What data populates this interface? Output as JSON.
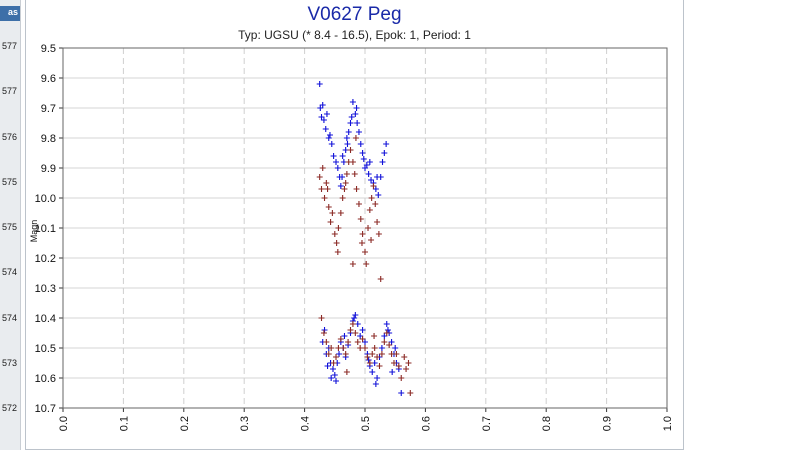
{
  "left_panel": {
    "header": "as",
    "values": [
      "577",
      "577",
      "576",
      "575",
      "575",
      "574",
      "574",
      "573",
      "572"
    ]
  },
  "chart_data": {
    "type": "scatter",
    "title": "V0627 Peg",
    "subtitle": "Typ: UGSU (* 8.4 - 16.5), Epok: 1, Period: 1",
    "xlabel": "",
    "ylabel": "Magn",
    "xlim": [
      0,
      1.0
    ],
    "ylim": [
      9.5,
      10.7
    ],
    "y_inverted": true,
    "grid": true,
    "xticks": [
      "0.0",
      "0.1",
      "0.2",
      "0.3",
      "0.4",
      "0.5",
      "0.6",
      "0.7",
      "0.8",
      "0.9",
      "1.0"
    ],
    "yticks": [
      "9.5",
      "9.6",
      "9.7",
      "9.8",
      "9.9",
      "10.0",
      "10.1",
      "10.2",
      "10.3",
      "10.4",
      "10.5",
      "10.6",
      "10.7"
    ],
    "series": [
      {
        "color": "#1010d8",
        "marker": "+",
        "points": [
          [
            0.425,
            9.62
          ],
          [
            0.426,
            9.7
          ],
          [
            0.428,
            9.73
          ],
          [
            0.43,
            9.69
          ],
          [
            0.432,
            9.74
          ],
          [
            0.435,
            9.77
          ],
          [
            0.44,
            9.8
          ],
          [
            0.445,
            9.82
          ],
          [
            0.448,
            9.86
          ],
          [
            0.452,
            9.88
          ],
          [
            0.455,
            9.9
          ],
          [
            0.458,
            9.93
          ],
          [
            0.46,
            9.96
          ],
          [
            0.462,
            9.93
          ],
          [
            0.465,
            9.88
          ],
          [
            0.468,
            9.84
          ],
          [
            0.47,
            9.8
          ],
          [
            0.473,
            9.78
          ],
          [
            0.476,
            9.75
          ],
          [
            0.478,
            9.73
          ],
          [
            0.48,
            9.68
          ],
          [
            0.484,
            9.72
          ],
          [
            0.487,
            9.75
          ],
          [
            0.49,
            9.78
          ],
          [
            0.493,
            9.82
          ],
          [
            0.496,
            9.85
          ],
          [
            0.498,
            9.87
          ],
          [
            0.5,
            9.9
          ],
          [
            0.503,
            9.89
          ],
          [
            0.506,
            9.92
          ],
          [
            0.51,
            9.94
          ],
          [
            0.514,
            9.95
          ],
          [
            0.518,
            9.97
          ],
          [
            0.522,
            9.99
          ],
          [
            0.526,
            9.93
          ],
          [
            0.529,
            9.88
          ],
          [
            0.532,
            9.85
          ],
          [
            0.535,
            9.82
          ],
          [
            0.442,
            9.79
          ],
          [
            0.437,
            9.72
          ],
          [
            0.463,
            9.86
          ],
          [
            0.471,
            9.82
          ],
          [
            0.486,
            9.7
          ],
          [
            0.508,
            9.88
          ],
          [
            0.52,
            9.93
          ],
          [
            0.43,
            10.48
          ],
          [
            0.433,
            10.44
          ],
          [
            0.436,
            10.52
          ],
          [
            0.44,
            10.5
          ],
          [
            0.443,
            10.55
          ],
          [
            0.447,
            10.57
          ],
          [
            0.45,
            10.59
          ],
          [
            0.454,
            10.55
          ],
          [
            0.457,
            10.52
          ],
          [
            0.46,
            10.48
          ],
          [
            0.464,
            10.5
          ],
          [
            0.468,
            10.53
          ],
          [
            0.472,
            10.49
          ],
          [
            0.476,
            10.45
          ],
          [
            0.48,
            10.41
          ],
          [
            0.484,
            10.39
          ],
          [
            0.488,
            10.42
          ],
          [
            0.492,
            10.46
          ],
          [
            0.496,
            10.44
          ],
          [
            0.5,
            10.48
          ],
          [
            0.504,
            10.52
          ],
          [
            0.508,
            10.56
          ],
          [
            0.512,
            10.58
          ],
          [
            0.516,
            10.55
          ],
          [
            0.52,
            10.6
          ],
          [
            0.524,
            10.53
          ],
          [
            0.528,
            10.5
          ],
          [
            0.532,
            10.46
          ],
          [
            0.536,
            10.42
          ],
          [
            0.54,
            10.45
          ],
          [
            0.544,
            10.48
          ],
          [
            0.548,
            10.52
          ],
          [
            0.552,
            10.55
          ],
          [
            0.556,
            10.57
          ],
          [
            0.56,
            10.65
          ],
          [
            0.438,
            10.56
          ],
          [
            0.444,
            10.6
          ],
          [
            0.452,
            10.61
          ],
          [
            0.466,
            10.46
          ],
          [
            0.482,
            10.4
          ],
          [
            0.506,
            10.54
          ],
          [
            0.518,
            10.62
          ],
          [
            0.538,
            10.44
          ],
          [
            0.55,
            10.5
          ],
          [
            0.545,
            10.58
          ]
        ]
      },
      {
        "color": "#8b2a25",
        "marker": "+",
        "points": [
          [
            0.425,
            9.93
          ],
          [
            0.428,
            9.97
          ],
          [
            0.43,
            9.9
          ],
          [
            0.433,
            10.0
          ],
          [
            0.436,
            9.95
          ],
          [
            0.44,
            10.03
          ],
          [
            0.443,
            10.08
          ],
          [
            0.446,
            10.05
          ],
          [
            0.45,
            10.12
          ],
          [
            0.453,
            10.15
          ],
          [
            0.456,
            10.1
          ],
          [
            0.46,
            10.05
          ],
          [
            0.463,
            10.0
          ],
          [
            0.466,
            9.97
          ],
          [
            0.47,
            9.92
          ],
          [
            0.473,
            9.88
          ],
          [
            0.476,
            9.84
          ],
          [
            0.48,
            9.88
          ],
          [
            0.483,
            9.92
          ],
          [
            0.486,
            9.97
          ],
          [
            0.49,
            10.02
          ],
          [
            0.493,
            10.07
          ],
          [
            0.496,
            10.12
          ],
          [
            0.5,
            10.18
          ],
          [
            0.502,
            10.22
          ],
          [
            0.505,
            10.1
          ],
          [
            0.508,
            10.04
          ],
          [
            0.511,
            10.0
          ],
          [
            0.514,
            9.96
          ],
          [
            0.517,
            10.02
          ],
          [
            0.52,
            10.08
          ],
          [
            0.523,
            10.12
          ],
          [
            0.526,
            10.27
          ],
          [
            0.48,
            10.22
          ],
          [
            0.495,
            10.15
          ],
          [
            0.455,
            10.18
          ],
          [
            0.468,
            9.95
          ],
          [
            0.438,
            9.97
          ],
          [
            0.51,
            10.14
          ],
          [
            0.485,
            9.8
          ],
          [
            0.428,
            10.4
          ],
          [
            0.432,
            10.45
          ],
          [
            0.436,
            10.48
          ],
          [
            0.44,
            10.52
          ],
          [
            0.444,
            10.5
          ],
          [
            0.448,
            10.55
          ],
          [
            0.452,
            10.53
          ],
          [
            0.456,
            10.5
          ],
          [
            0.46,
            10.47
          ],
          [
            0.464,
            10.5
          ],
          [
            0.468,
            10.52
          ],
          [
            0.472,
            10.48
          ],
          [
            0.476,
            10.44
          ],
          [
            0.48,
            10.42
          ],
          [
            0.484,
            10.45
          ],
          [
            0.488,
            10.48
          ],
          [
            0.492,
            10.5
          ],
          [
            0.496,
            10.47
          ],
          [
            0.5,
            10.5
          ],
          [
            0.504,
            10.53
          ],
          [
            0.508,
            10.55
          ],
          [
            0.512,
            10.52
          ],
          [
            0.516,
            10.5
          ],
          [
            0.52,
            10.53
          ],
          [
            0.524,
            10.56
          ],
          [
            0.528,
            10.52
          ],
          [
            0.532,
            10.48
          ],
          [
            0.536,
            10.45
          ],
          [
            0.54,
            10.49
          ],
          [
            0.544,
            10.52
          ],
          [
            0.548,
            10.55
          ],
          [
            0.552,
            10.52
          ],
          [
            0.556,
            10.56
          ],
          [
            0.56,
            10.6
          ],
          [
            0.565,
            10.53
          ],
          [
            0.568,
            10.57
          ],
          [
            0.572,
            10.55
          ],
          [
            0.575,
            10.65
          ],
          [
            0.47,
            10.58
          ],
          [
            0.515,
            10.46
          ]
        ]
      }
    ]
  }
}
